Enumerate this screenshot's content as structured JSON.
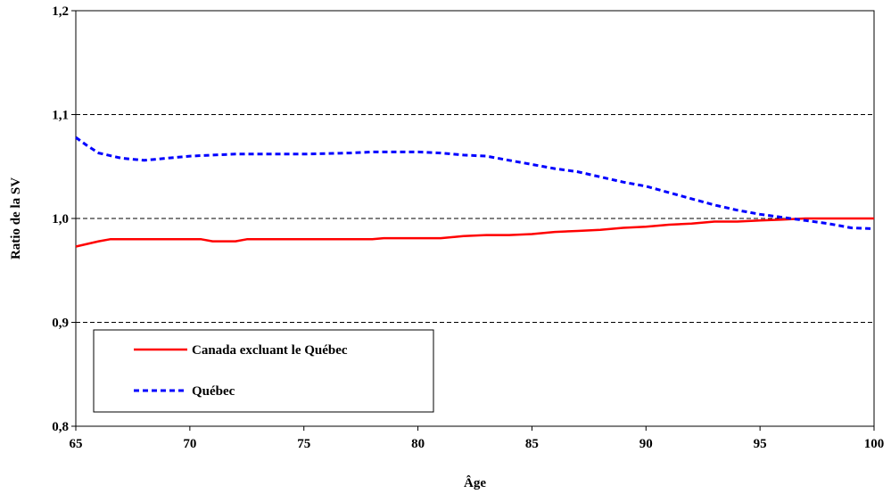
{
  "chart_data": {
    "type": "line",
    "title": "",
    "xlabel": "Âge",
    "ylabel": "Ratio de la SV",
    "xlim": [
      65,
      100
    ],
    "ylim": [
      0.8,
      1.2
    ],
    "x_ticks": [
      65,
      70,
      75,
      80,
      85,
      90,
      95,
      100
    ],
    "y_ticks": [
      0.8,
      0.9,
      1.0,
      1.1,
      1.2
    ],
    "x_tick_labels": [
      "65",
      "70",
      "75",
      "80",
      "85",
      "90",
      "95",
      "100"
    ],
    "y_tick_labels": [
      "0,8",
      "0,9",
      "1,0",
      "1,1",
      "1,2"
    ],
    "grid": "horizontal-dashed",
    "legend_position": "bottom-left",
    "series": [
      {
        "name": "Canada excluant le Québec",
        "color": "#ff0000",
        "style": "solid",
        "points": [
          [
            65,
            0.973
          ],
          [
            66,
            0.978
          ],
          [
            66.5,
            0.98
          ],
          [
            67,
            0.98
          ],
          [
            68,
            0.98
          ],
          [
            69,
            0.98
          ],
          [
            70,
            0.98
          ],
          [
            70.5,
            0.98
          ],
          [
            71,
            0.978
          ],
          [
            72,
            0.978
          ],
          [
            72.5,
            0.98
          ],
          [
            73,
            0.98
          ],
          [
            75,
            0.98
          ],
          [
            77,
            0.98
          ],
          [
            78,
            0.98
          ],
          [
            78.5,
            0.981
          ],
          [
            80,
            0.981
          ],
          [
            81,
            0.981
          ],
          [
            82,
            0.983
          ],
          [
            83,
            0.984
          ],
          [
            84,
            0.984
          ],
          [
            85,
            0.985
          ],
          [
            86,
            0.987
          ],
          [
            87,
            0.988
          ],
          [
            88,
            0.989
          ],
          [
            89,
            0.991
          ],
          [
            90,
            0.992
          ],
          [
            91,
            0.994
          ],
          [
            92,
            0.995
          ],
          [
            93,
            0.997
          ],
          [
            94,
            0.997
          ],
          [
            95,
            0.998
          ],
          [
            96,
            0.999
          ],
          [
            97,
            1.0
          ],
          [
            97.5,
            1.0
          ],
          [
            98,
            1.0
          ],
          [
            99,
            1.0
          ],
          [
            100,
            1.0
          ]
        ]
      },
      {
        "name": "Québec",
        "color": "#0000ff",
        "style": "dashed",
        "points": [
          [
            65,
            1.078
          ],
          [
            65.5,
            1.07
          ],
          [
            66,
            1.063
          ],
          [
            67,
            1.058
          ],
          [
            68,
            1.056
          ],
          [
            69,
            1.058
          ],
          [
            70,
            1.06
          ],
          [
            71,
            1.061
          ],
          [
            72,
            1.062
          ],
          [
            73,
            1.062
          ],
          [
            75,
            1.062
          ],
          [
            77,
            1.063
          ],
          [
            78,
            1.064
          ],
          [
            79,
            1.064
          ],
          [
            80,
            1.064
          ],
          [
            81,
            1.063
          ],
          [
            82,
            1.061
          ],
          [
            83,
            1.06
          ],
          [
            84,
            1.056
          ],
          [
            85,
            1.052
          ],
          [
            86,
            1.048
          ],
          [
            87,
            1.045
          ],
          [
            88,
            1.04
          ],
          [
            89,
            1.035
          ],
          [
            90,
            1.031
          ],
          [
            91,
            1.025
          ],
          [
            92,
            1.019
          ],
          [
            93,
            1.013
          ],
          [
            94,
            1.008
          ],
          [
            95,
            1.004
          ],
          [
            96,
            1.001
          ],
          [
            97,
            0.998
          ],
          [
            98,
            0.995
          ],
          [
            99,
            0.991
          ],
          [
            100,
            0.99
          ]
        ]
      }
    ]
  }
}
